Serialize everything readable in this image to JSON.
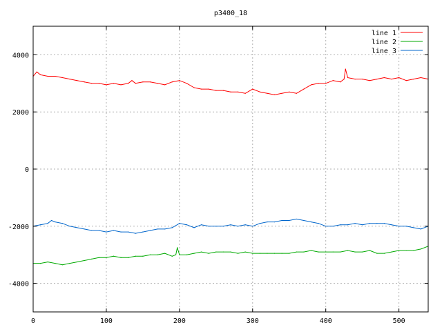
{
  "chart_data": {
    "type": "line",
    "title": "p3400_18",
    "xlabel": "",
    "ylabel": "",
    "xlim": [
      0,
      540
    ],
    "ylim": [
      -5000,
      5000
    ],
    "xticks": [
      0,
      100,
      200,
      300,
      400,
      500
    ],
    "yticks": [
      -4000,
      -2000,
      0,
      2000,
      4000
    ],
    "grid": true,
    "legend_position": "top-right",
    "series": [
      {
        "name": "line 1",
        "color": "#ff0000",
        "x": [
          0,
          5,
          10,
          20,
          30,
          40,
          50,
          60,
          70,
          80,
          90,
          100,
          110,
          120,
          130,
          135,
          140,
          150,
          160,
          170,
          180,
          190,
          200,
          210,
          220,
          230,
          240,
          250,
          260,
          270,
          280,
          290,
          300,
          310,
          320,
          330,
          340,
          350,
          360,
          370,
          380,
          390,
          400,
          410,
          420,
          425,
          427,
          430,
          440,
          450,
          460,
          470,
          480,
          490,
          500,
          510,
          520,
          530,
          540
        ],
        "values": [
          3250,
          3400,
          3300,
          3250,
          3250,
          3200,
          3150,
          3100,
          3050,
          3000,
          3000,
          2950,
          3000,
          2950,
          3000,
          3100,
          3000,
          3050,
          3050,
          3000,
          2950,
          3050,
          3100,
          3000,
          2850,
          2800,
          2800,
          2750,
          2750,
          2700,
          2700,
          2650,
          2800,
          2700,
          2650,
          2600,
          2650,
          2700,
          2650,
          2800,
          2950,
          3000,
          3000,
          3100,
          3050,
          3150,
          3500,
          3200,
          3150,
          3150,
          3100,
          3150,
          3200,
          3150,
          3200,
          3100,
          3150,
          3200,
          3150
        ]
      },
      {
        "name": "line 2",
        "color": "#00aa00",
        "x": [
          0,
          10,
          20,
          30,
          40,
          50,
          60,
          70,
          80,
          90,
          100,
          110,
          120,
          130,
          140,
          150,
          160,
          170,
          180,
          190,
          195,
          197,
          200,
          210,
          220,
          230,
          240,
          250,
          260,
          270,
          280,
          290,
          300,
          310,
          320,
          330,
          340,
          350,
          360,
          370,
          380,
          390,
          400,
          410,
          420,
          430,
          440,
          450,
          460,
          470,
          480,
          490,
          500,
          510,
          520,
          530,
          540
        ],
        "values": [
          -3300,
          -3300,
          -3250,
          -3300,
          -3350,
          -3300,
          -3250,
          -3200,
          -3150,
          -3100,
          -3100,
          -3050,
          -3100,
          -3100,
          -3050,
          -3050,
          -3000,
          -3000,
          -2950,
          -3050,
          -3000,
          -2750,
          -3000,
          -3000,
          -2950,
          -2900,
          -2950,
          -2900,
          -2900,
          -2900,
          -2950,
          -2900,
          -2950,
          -2950,
          -2950,
          -2950,
          -2950,
          -2950,
          -2900,
          -2900,
          -2850,
          -2900,
          -2900,
          -2900,
          -2900,
          -2850,
          -2900,
          -2900,
          -2850,
          -2950,
          -2950,
          -2900,
          -2850,
          -2850,
          -2850,
          -2800,
          -2700
        ]
      },
      {
        "name": "line 3",
        "color": "#0066cc",
        "x": [
          0,
          10,
          20,
          25,
          30,
          40,
          50,
          60,
          70,
          80,
          90,
          100,
          110,
          120,
          130,
          140,
          150,
          160,
          170,
          180,
          190,
          200,
          210,
          220,
          230,
          240,
          250,
          260,
          270,
          280,
          290,
          300,
          310,
          320,
          330,
          340,
          350,
          360,
          370,
          380,
          390,
          400,
          410,
          420,
          430,
          440,
          450,
          460,
          470,
          480,
          490,
          500,
          510,
          520,
          530,
          540
        ],
        "values": [
          -2000,
          -1950,
          -1900,
          -1800,
          -1850,
          -1900,
          -2000,
          -2050,
          -2100,
          -2150,
          -2150,
          -2200,
          -2150,
          -2200,
          -2200,
          -2250,
          -2200,
          -2150,
          -2100,
          -2100,
          -2050,
          -1900,
          -1950,
          -2050,
          -1950,
          -2000,
          -2000,
          -2000,
          -1950,
          -2000,
          -1950,
          -2000,
          -1900,
          -1850,
          -1850,
          -1800,
          -1800,
          -1750,
          -1800,
          -1850,
          -1900,
          -2000,
          -2000,
          -1950,
          -1950,
          -1900,
          -1950,
          -1900,
          -1900,
          -1900,
          -1950,
          -2000,
          -2000,
          -2050,
          -2100,
          -2000
        ]
      }
    ]
  }
}
